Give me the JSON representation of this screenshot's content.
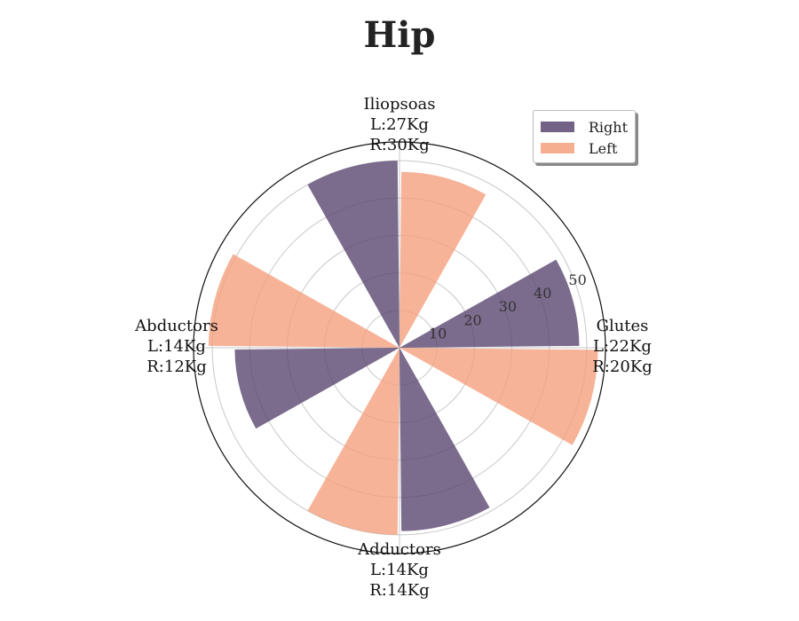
{
  "chart_data": {
    "type": "polar-bar",
    "title": "Hip",
    "rlim": [
      0,
      55
    ],
    "rticks": [
      10,
      20,
      30,
      40,
      50
    ],
    "grid": true,
    "legend_position": "top-right",
    "categories": [
      {
        "name": "Iliopsoas",
        "left_label": "L:27Kg",
        "right_label": "R:30Kg"
      },
      {
        "name": "Glutes",
        "left_label": "L:22Kg",
        "right_label": "R:20Kg"
      },
      {
        "name": "Adductors",
        "left_label": "L:14Kg",
        "right_label": "R:14Kg"
      },
      {
        "name": "Abductors",
        "left_label": "L:14Kg",
        "right_label": "R:12Kg"
      }
    ],
    "series": [
      {
        "name": "Right",
        "color": "#5a4670",
        "values": [
          {
            "angle_deg": 345,
            "r": 50
          },
          {
            "angle_deg": 75,
            "r": 48
          },
          {
            "angle_deg": 165,
            "r": 49
          },
          {
            "angle_deg": 255,
            "r": 44
          }
        ]
      },
      {
        "name": "Left",
        "color": "#f4a07e",
        "values": [
          {
            "angle_deg": 15,
            "r": 47
          },
          {
            "angle_deg": 105,
            "r": 53
          },
          {
            "angle_deg": 195,
            "r": 50
          },
          {
            "angle_deg": 285,
            "r": 51
          }
        ]
      }
    ]
  }
}
